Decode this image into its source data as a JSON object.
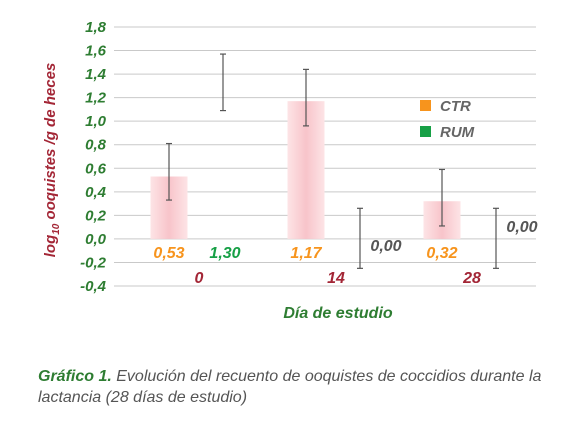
{
  "chart_data": {
    "type": "bar",
    "ylabel_main": "log",
    "ylabel_sub": "10",
    "ylabel_rest": " ooquistes /g de heces",
    "xlabel": "Día de estudio",
    "ylim": [
      -0.4,
      1.8
    ],
    "yticks": [
      "1,8",
      "1,6",
      "1,4",
      "1,2",
      "1,0",
      "0,8",
      "0,6",
      "0,4",
      "0,2",
      "0,0",
      "-0,2",
      "-0,4"
    ],
    "categories": [
      "0",
      "14",
      "28"
    ],
    "grid": true,
    "legend_position": "right",
    "series": [
      {
        "name": "CTR",
        "color": "#f7941d",
        "values": [
          0.53,
          1.17,
          0.32
        ],
        "labels": [
          "0,53",
          "1,17",
          "0,32"
        ],
        "error_low": [
          0.33,
          0.96,
          0.11
        ],
        "error_high": [
          0.81,
          1.44,
          0.59
        ]
      },
      {
        "name": "RUM",
        "color": "#17a046",
        "values": [
          1.3,
          0.0,
          0.0
        ],
        "labels": [
          "1,30",
          "0,00",
          "0,00"
        ],
        "error_low": [
          1.09,
          -0.25,
          -0.25
        ],
        "error_high": [
          1.57,
          0.26,
          0.26
        ]
      }
    ]
  },
  "caption": {
    "label": "Gráfico 1.",
    "text": " Evolución del recuento de ooquistes de coccidios durante la lactancia (28 días de estudio)"
  }
}
